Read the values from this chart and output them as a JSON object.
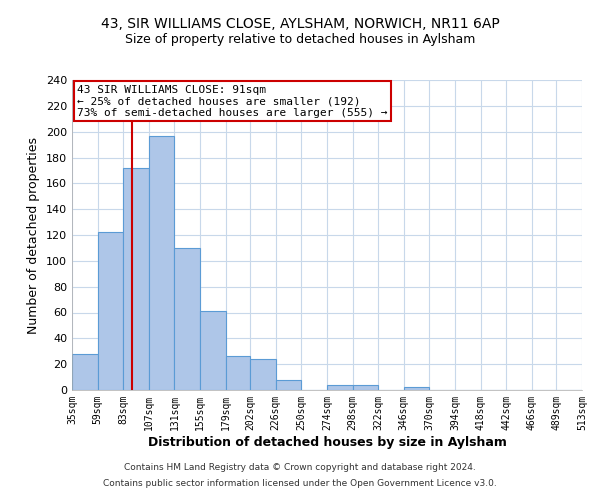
{
  "title_line1": "43, SIR WILLIAMS CLOSE, AYLSHAM, NORWICH, NR11 6AP",
  "title_line2": "Size of property relative to detached houses in Aylsham",
  "xlabel": "Distribution of detached houses by size in Aylsham",
  "ylabel": "Number of detached properties",
  "bar_edges": [
    35,
    59,
    83,
    107,
    131,
    155,
    179,
    202,
    226,
    250,
    274,
    298,
    322,
    346,
    370,
    394,
    418,
    442,
    466,
    489,
    513
  ],
  "bar_heights": [
    28,
    122,
    172,
    197,
    110,
    61,
    26,
    24,
    8,
    0,
    4,
    4,
    0,
    2,
    0,
    0,
    0,
    0,
    0,
    0
  ],
  "bar_color": "#aec6e8",
  "bar_edge_color": "#5b9bd5",
  "property_line_x": 91,
  "property_line_color": "#cc0000",
  "annotation_line1": "43 SIR WILLIAMS CLOSE: 91sqm",
  "annotation_line2": "← 25% of detached houses are smaller (192)",
  "annotation_line3": "73% of semi-detached houses are larger (555) →",
  "annotation_box_color": "#ffffff",
  "annotation_box_edge": "#cc0000",
  "ylim": [
    0,
    240
  ],
  "yticks": [
    0,
    20,
    40,
    60,
    80,
    100,
    120,
    140,
    160,
    180,
    200,
    220,
    240
  ],
  "tick_labels": [
    "35sqm",
    "59sqm",
    "83sqm",
    "107sqm",
    "131sqm",
    "155sqm",
    "179sqm",
    "202sqm",
    "226sqm",
    "250sqm",
    "274sqm",
    "298sqm",
    "322sqm",
    "346sqm",
    "370sqm",
    "394sqm",
    "418sqm",
    "442sqm",
    "466sqm",
    "489sqm",
    "513sqm"
  ],
  "footer_line1": "Contains HM Land Registry data © Crown copyright and database right 2024.",
  "footer_line2": "Contains public sector information licensed under the Open Government Licence v3.0.",
  "background_color": "#ffffff",
  "grid_color": "#c8d8ea"
}
